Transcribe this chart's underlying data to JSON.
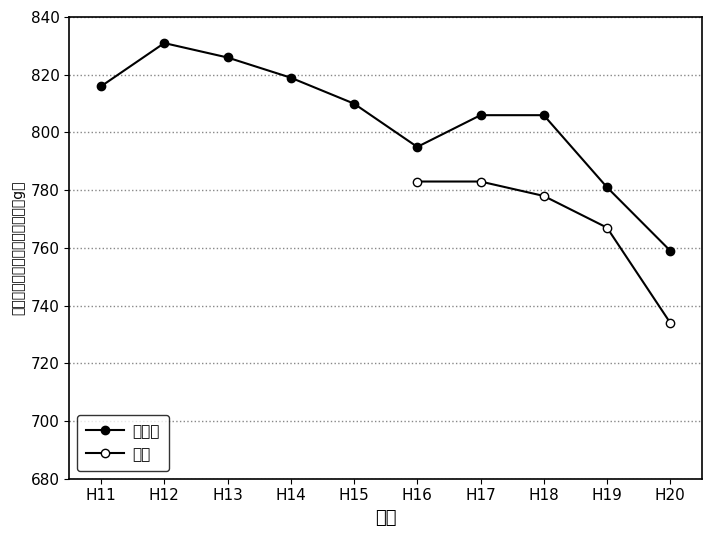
{
  "years": [
    "H11",
    "H12",
    "H13",
    "H14",
    "H15",
    "H16",
    "H17",
    "H18",
    "H19",
    "H20"
  ],
  "saitama": [
    816,
    831,
    826,
    819,
    810,
    795,
    806,
    806,
    781,
    759
  ],
  "zenkoku": [
    null,
    null,
    null,
    null,
    null,
    783,
    783,
    778,
    767,
    734
  ],
  "saitama_color": "#000000",
  "zenkoku_color": "#000000",
  "ylim": [
    680,
    840
  ],
  "yticks": [
    680,
    700,
    720,
    740,
    760,
    780,
    800,
    820,
    840
  ],
  "ylabel": "一人一日当たり排出量（単位：g）",
  "xlabel": "年度",
  "legend_saitama": "埼玉県",
  "legend_zenkoku": "全国",
  "grid_color": "#888888",
  "bg_color": "#ffffff"
}
